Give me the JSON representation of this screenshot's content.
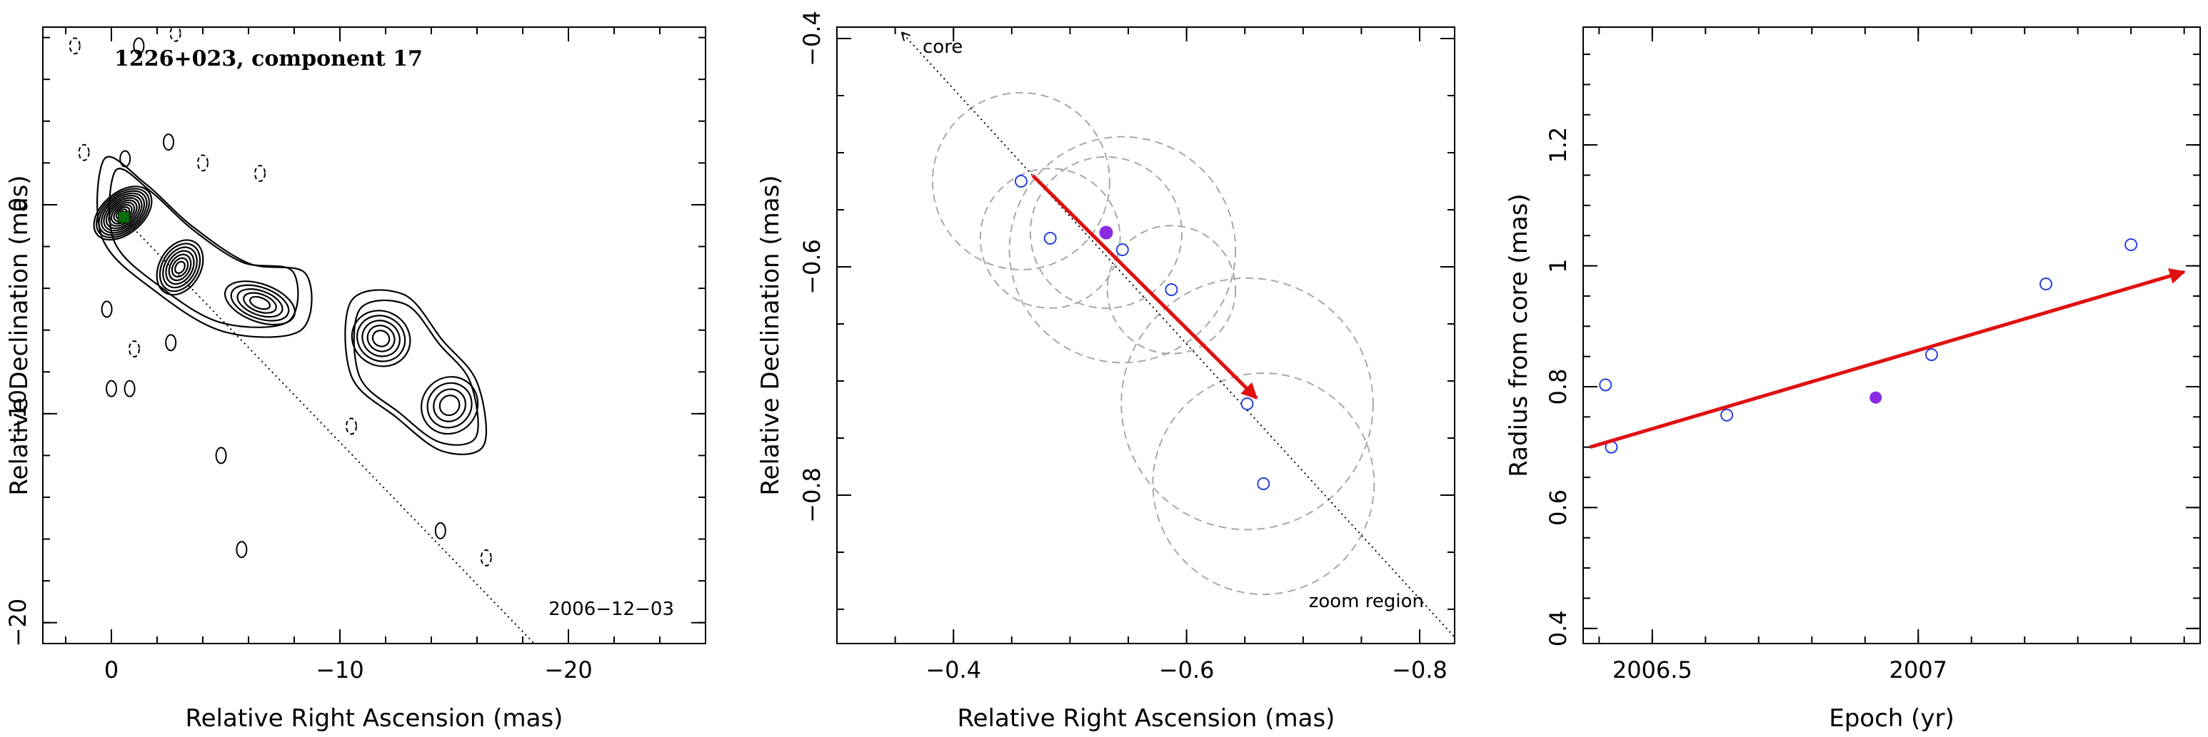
{
  "colors": {
    "open_marker": "#2a3fe0",
    "filled_marker": "#8a2be2",
    "arrow": "#e01010",
    "circles": "#a8a8a8",
    "contour": "#000000",
    "component_marker": "#0a6e0a"
  },
  "chart_data": [
    {
      "type": "contour",
      "title": "1226+023, component 17",
      "annotation_date": "2006−12−03",
      "xlabel": "Relative Right Ascension (mas)",
      "ylabel": "Relative Declination (mas)",
      "xlim": [
        3,
        -26
      ],
      "ylim": [
        -21,
        8.5
      ],
      "x_ticks": [
        0,
        -10,
        -20
      ],
      "x_tick_labels": [
        "0",
        "−10",
        "−20"
      ],
      "y_ticks": [
        0,
        -10,
        -20
      ],
      "y_tick_labels": [
        "0",
        "−10",
        "−20"
      ],
      "component_position": [
        -0.55,
        -0.6
      ],
      "dotted_line": {
        "from": [
          -0.5,
          -0.6
        ],
        "to": [
          -18.5,
          -21
        ]
      },
      "jet_knots": [
        {
          "x": -0.5,
          "y": -0.4,
          "rx": 0.9,
          "ry": 1.6,
          "levels": 11,
          "angle": 50
        },
        {
          "x": -3.0,
          "y": -3.0,
          "rx": 0.9,
          "ry": 1.4,
          "levels": 7,
          "angle": 30
        },
        {
          "x": -6.5,
          "y": -4.7,
          "rx": 1.6,
          "ry": 0.9,
          "levels": 5,
          "angle": 20
        },
        {
          "x": -11.8,
          "y": -6.4,
          "rx": 1.3,
          "ry": 1.3,
          "levels": 5,
          "angle": 30
        },
        {
          "x": -14.8,
          "y": -9.6,
          "rx": 1.2,
          "ry": 1.4,
          "levels": 4,
          "angle": 40
        }
      ],
      "jet_envelopes": [
        {
          "points": [
            [
              0.3,
              2.2
            ],
            [
              -1.5,
              1.0
            ],
            [
              -3.5,
              -1.0
            ],
            [
              -6.0,
              -2.8
            ],
            [
              -8.5,
              -3.3
            ],
            [
              -8.3,
              -6.0
            ],
            [
              -5.0,
              -6.1
            ],
            [
              -2.0,
              -4.2
            ],
            [
              0.4,
              -1.6
            ]
          ]
        },
        {
          "points": [
            [
              -10.5,
              -4.6
            ],
            [
              -12.8,
              -4.3
            ],
            [
              -14.5,
              -6.5
            ],
            [
              -16.0,
              -8.5
            ],
            [
              -16.3,
              -11.5
            ],
            [
              -14.5,
              -11.8
            ],
            [
              -12.5,
              -10.2
            ],
            [
              -10.5,
              -8.2
            ]
          ]
        }
      ],
      "noise_blobs": [
        {
          "x": 1.6,
          "y": 7.6,
          "dashed": true
        },
        {
          "x": -1.2,
          "y": 7.6,
          "dashed": false
        },
        {
          "x": -2.8,
          "y": 8.2,
          "dashed": true
        },
        {
          "x": 1.2,
          "y": 2.5,
          "dashed": true
        },
        {
          "x": -0.6,
          "y": 2.2,
          "dashed": false
        },
        {
          "x": -4.0,
          "y": 2.0,
          "dashed": true
        },
        {
          "x": -6.5,
          "y": 1.5,
          "dashed": true
        },
        {
          "x": -2.5,
          "y": 3.0,
          "dashed": false
        },
        {
          "x": 0.2,
          "y": -5.0,
          "dashed": false
        },
        {
          "x": -1.0,
          "y": -6.9,
          "dashed": true
        },
        {
          "x": -2.6,
          "y": -6.6,
          "dashed": false
        },
        {
          "x": 0.0,
          "y": -8.8,
          "dashed": false
        },
        {
          "x": -0.8,
          "y": -8.8,
          "dashed": false
        },
        {
          "x": -4.8,
          "y": -12.0,
          "dashed": false
        },
        {
          "x": -5.7,
          "y": -16.5,
          "dashed": false
        },
        {
          "x": -10.5,
          "y": -10.6,
          "dashed": true
        },
        {
          "x": -16.4,
          "y": -16.9,
          "dashed": true
        },
        {
          "x": -14.4,
          "y": -15.6,
          "dashed": false
        }
      ]
    },
    {
      "type": "scatter",
      "title": "",
      "xlabel": "Relative Right Ascension (mas)",
      "ylabel": "Relative Declination (mas)",
      "xlim": [
        -0.3,
        -0.83
      ],
      "ylim": [
        -0.93,
        -0.39
      ],
      "x_ticks": [
        -0.4,
        -0.6,
        -0.8
      ],
      "x_tick_labels": [
        "−0.4",
        "−0.6",
        "−0.8"
      ],
      "y_ticks": [
        -0.4,
        -0.6,
        -0.8
      ],
      "y_tick_labels": [
        "−0.4",
        "−0.6",
        "−0.8"
      ],
      "core_label": "core",
      "zoom_label": "zoom region",
      "dotted_line": {
        "from": [
          -0.356,
          -0.395
        ],
        "to": [
          -0.835,
          -0.93
        ]
      },
      "points_open": [
        {
          "x": -0.458,
          "y": -0.525
        },
        {
          "x": -0.483,
          "y": -0.575
        },
        {
          "x": -0.545,
          "y": -0.585
        },
        {
          "x": -0.587,
          "y": -0.62
        },
        {
          "x": -0.652,
          "y": -0.72
        },
        {
          "x": -0.666,
          "y": -0.79
        }
      ],
      "point_filled": {
        "x": -0.531,
        "y": -0.57
      },
      "error_circles": [
        {
          "x": -0.458,
          "y": -0.525,
          "r": 0.076
        },
        {
          "x": -0.483,
          "y": -0.575,
          "r": 0.06
        },
        {
          "x": -0.531,
          "y": -0.57,
          "r": 0.065
        },
        {
          "x": -0.545,
          "y": -0.585,
          "r": 0.097
        },
        {
          "x": -0.587,
          "y": -0.62,
          "r": 0.055
        },
        {
          "x": -0.652,
          "y": -0.72,
          "r": 0.108
        },
        {
          "x": -0.666,
          "y": -0.79,
          "r": 0.095
        }
      ],
      "arrow": {
        "from": [
          -0.468,
          -0.52
        ],
        "to": [
          -0.66,
          -0.715
        ]
      }
    },
    {
      "type": "scatter",
      "title": "",
      "xlabel": "Epoch (yr)",
      "ylabel": "Radius from core (mas)",
      "xlim": [
        2006.37,
        2007.53
      ],
      "ylim": [
        0.375,
        1.395
      ],
      "x_ticks": [
        2006.5,
        2007.0
      ],
      "x_tick_labels": [
        "2006.5",
        "2007"
      ],
      "y_ticks": [
        0.4,
        0.6,
        0.8,
        1.0,
        1.2
      ],
      "y_tick_labels": [
        "0.4",
        "0.6",
        "0.8",
        "1",
        "1.2"
      ],
      "points_open": [
        {
          "x": 2006.412,
          "y": 0.803
        },
        {
          "x": 2006.423,
          "y": 0.7
        },
        {
          "x": 2006.64,
          "y": 0.753
        },
        {
          "x": 2007.025,
          "y": 0.853
        },
        {
          "x": 2007.24,
          "y": 0.97
        },
        {
          "x": 2007.4,
          "y": 1.035
        }
      ],
      "point_filled": {
        "x": 2006.92,
        "y": 0.782
      },
      "arrow": {
        "from": [
          2006.383,
          0.7
        ],
        "to": [
          2007.5,
          0.99
        ]
      }
    }
  ]
}
